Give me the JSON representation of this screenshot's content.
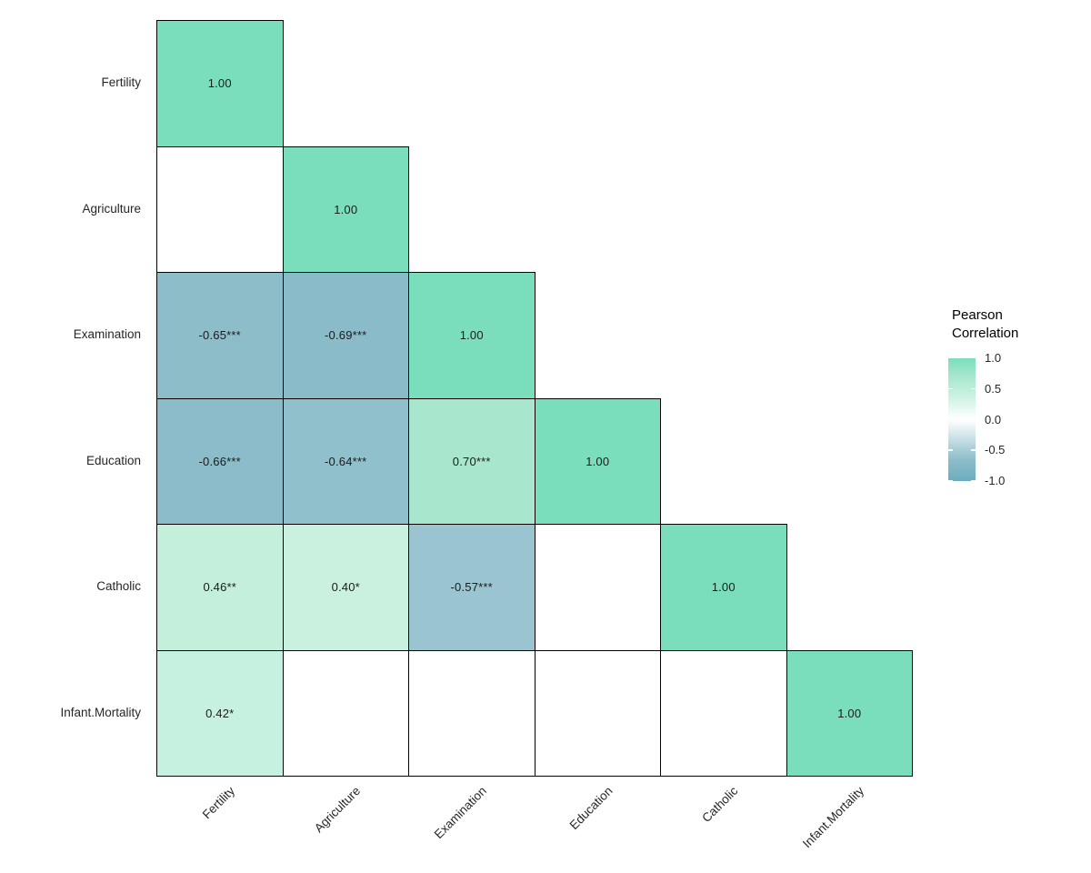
{
  "chart_data": {
    "type": "heatmap",
    "subtype": "correlation-matrix-lower-triangle",
    "title": "",
    "variables": [
      "Fertility",
      "Agriculture",
      "Examination",
      "Education",
      "Catholic",
      "Infant.Mortality"
    ],
    "legend": {
      "title": "Pearson\nCorrelation",
      "position": "right",
      "range": [
        -1.0,
        1.0
      ],
      "ticks": [
        "1.0",
        "0.5",
        "0.0",
        "-0.5",
        "-1.0"
      ],
      "gradient_stops": [
        {
          "pos": 0,
          "color": "#7ADEBC"
        },
        {
          "pos": 15,
          "color": "#A8E7CD"
        },
        {
          "pos": 30,
          "color": "#C9F1E0"
        },
        {
          "pos": 50,
          "color": "#FFFFFF"
        },
        {
          "pos": 78.5,
          "color": "#9AC5D0"
        },
        {
          "pos": 82.5,
          "color": "#8EBDCA"
        },
        {
          "pos": 100,
          "color": "#6CACBE"
        }
      ]
    },
    "cells": [
      {
        "row": 0,
        "col": 0,
        "label": "1.00",
        "value": 1.0,
        "color": "#7ADEBC"
      },
      {
        "row": 1,
        "col": 0,
        "label": "",
        "value": null,
        "color": "#FFFFFF"
      },
      {
        "row": 1,
        "col": 1,
        "label": "1.00",
        "value": 1.0,
        "color": "#7ADEBC"
      },
      {
        "row": 2,
        "col": 0,
        "label": "-0.65***",
        "value": -0.65,
        "color": "#8EBDCA"
      },
      {
        "row": 2,
        "col": 1,
        "label": "-0.69***",
        "value": -0.69,
        "color": "#89BBC9"
      },
      {
        "row": 2,
        "col": 2,
        "label": "1.00",
        "value": 1.0,
        "color": "#7ADEBC"
      },
      {
        "row": 3,
        "col": 0,
        "label": "-0.66***",
        "value": -0.66,
        "color": "#8CBCC9"
      },
      {
        "row": 3,
        "col": 1,
        "label": "-0.64***",
        "value": -0.64,
        "color": "#8FC0CC"
      },
      {
        "row": 3,
        "col": 2,
        "label": "0.70***",
        "value": 0.7,
        "color": "#A8E7CD"
      },
      {
        "row": 3,
        "col": 3,
        "label": "1.00",
        "value": 1.0,
        "color": "#7ADEBC"
      },
      {
        "row": 4,
        "col": 0,
        "label": "0.46**",
        "value": 0.46,
        "color": "#C3EFDC"
      },
      {
        "row": 4,
        "col": 1,
        "label": "0.40*",
        "value": 0.4,
        "color": "#CAF1E0"
      },
      {
        "row": 4,
        "col": 2,
        "label": "-0.57***",
        "value": -0.57,
        "color": "#9AC5D0"
      },
      {
        "row": 4,
        "col": 3,
        "label": "",
        "value": null,
        "color": "#FFFFFF"
      },
      {
        "row": 4,
        "col": 4,
        "label": "1.00",
        "value": 1.0,
        "color": "#7ADEBC"
      },
      {
        "row": 5,
        "col": 0,
        "label": "0.42*",
        "value": 0.42,
        "color": "#C6F0DF"
      },
      {
        "row": 5,
        "col": 1,
        "label": "",
        "value": null,
        "color": "#FFFFFF"
      },
      {
        "row": 5,
        "col": 2,
        "label": "",
        "value": null,
        "color": "#FFFFFF"
      },
      {
        "row": 5,
        "col": 3,
        "label": "",
        "value": null,
        "color": "#FFFFFF"
      },
      {
        "row": 5,
        "col": 4,
        "label": "",
        "value": null,
        "color": "#FFFFFF"
      },
      {
        "row": 5,
        "col": 5,
        "label": "1.00",
        "value": 1.0,
        "color": "#7ADEBC"
      }
    ]
  },
  "colors": {
    "high": "#7ADEBC",
    "mid": "#FFFFFF",
    "low": "#6CACBE",
    "cell_border": "#000000",
    "cell_text": "#1a1a1a",
    "axis_text": "#262626",
    "background": "#FFFFFF"
  }
}
